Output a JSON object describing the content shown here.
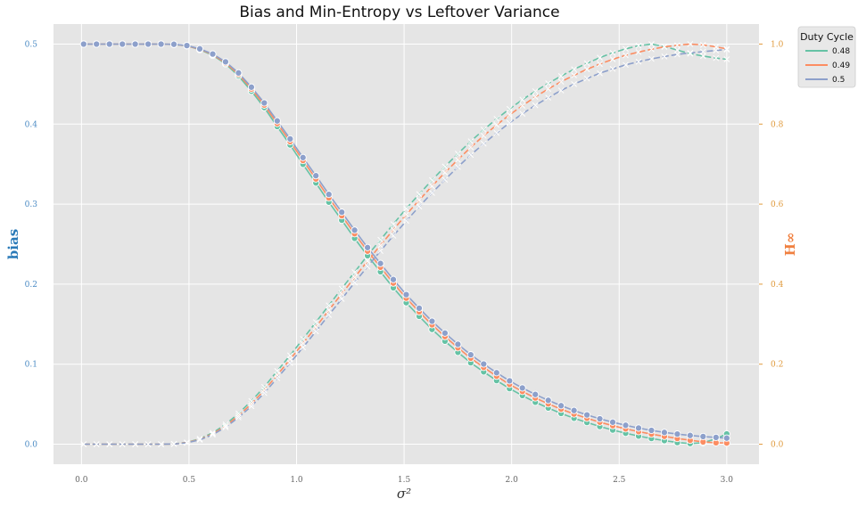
{
  "chart_data": {
    "type": "line",
    "title": "Bias and Min-Entropy vs Leftover Variance",
    "xlabel": "σ²",
    "ylabel_left": "bias",
    "ylabel_right": "H∞",
    "xlim": [
      -0.13,
      3.15
    ],
    "ylim_left": [
      -0.025,
      0.525
    ],
    "ylim_right": [
      -0.05,
      1.05
    ],
    "x_ticks": [
      "0.0",
      "0.5",
      "1.0",
      "1.5",
      "2.0",
      "2.5",
      "3.0"
    ],
    "y_left_ticks": [
      "0.0",
      "0.1",
      "0.2",
      "0.3",
      "0.4",
      "0.5"
    ],
    "y_right_ticks": [
      "0.0",
      "0.2",
      "0.4",
      "0.6",
      "0.8",
      "1.0"
    ],
    "grid": true,
    "legend": {
      "title": "Duty Cycle",
      "placement": "top-right",
      "entries": [
        "0.48",
        "0.49",
        "0.5"
      ]
    },
    "x": [
      0.01,
      0.07,
      0.13,
      0.19,
      0.25,
      0.31,
      0.37,
      0.43,
      0.49,
      0.55,
      0.61,
      0.67,
      0.73,
      0.79,
      0.85,
      0.91,
      0.97,
      1.03,
      1.09,
      1.15,
      1.21,
      1.27,
      1.33,
      1.39,
      1.45,
      1.51,
      1.57,
      1.63,
      1.69,
      1.75,
      1.81,
      1.87,
      1.93,
      1.99,
      2.05,
      2.11,
      2.17,
      2.23,
      2.29,
      2.35,
      2.41,
      2.47,
      2.53,
      2.59,
      2.65,
      2.71,
      2.77,
      2.83,
      2.89,
      2.95,
      3.0
    ],
    "series": [
      {
        "name": "0.48",
        "color": "#66c2a5",
        "bias": [
          0.5,
          0.5,
          0.5,
          0.5,
          0.5,
          0.5,
          0.5,
          0.4995,
          0.4978,
          0.493,
          0.486,
          0.4753,
          0.4602,
          0.4412,
          0.4207,
          0.397,
          0.374,
          0.3498,
          0.3265,
          0.3025,
          0.28,
          0.2572,
          0.2355,
          0.2155,
          0.1955,
          0.1768,
          0.1598,
          0.1435,
          0.1288,
          0.1148,
          0.1018,
          0.0905,
          0.0795,
          0.0695,
          0.0608,
          0.0525,
          0.0452,
          0.0385,
          0.0325,
          0.0272,
          0.0222,
          0.0178,
          0.0138,
          0.0102,
          0.0072,
          0.0045,
          0.0022,
          0.0008,
          0.0018,
          0.0068,
          0.0128
        ],
        "hinf": [
          0.0,
          0.0,
          0.0,
          0.0,
          0.0,
          0.0,
          0.0,
          0.0008,
          0.0045,
          0.0135,
          0.0285,
          0.0495,
          0.077,
          0.108,
          0.143,
          0.183,
          0.222,
          0.263,
          0.305,
          0.347,
          0.389,
          0.43,
          0.472,
          0.511,
          0.55,
          0.589,
          0.625,
          0.66,
          0.694,
          0.726,
          0.757,
          0.786,
          0.813,
          0.838,
          0.861,
          0.882,
          0.902,
          0.92,
          0.937,
          0.952,
          0.966,
          0.978,
          0.988,
          0.996,
          1.0,
          0.994,
          0.985,
          0.976,
          0.97,
          0.965,
          0.962
        ]
      },
      {
        "name": "0.49",
        "color": "#fc8d62",
        "bias": [
          0.5,
          0.5,
          0.5,
          0.5,
          0.5,
          0.5,
          0.5,
          0.4996,
          0.498,
          0.4935,
          0.4868,
          0.4765,
          0.4622,
          0.4438,
          0.4238,
          0.4008,
          0.3782,
          0.3545,
          0.3315,
          0.3078,
          0.2855,
          0.263,
          0.2413,
          0.2212,
          0.2013,
          0.1825,
          0.1655,
          0.1492,
          0.1345,
          0.1205,
          0.1075,
          0.096,
          0.085,
          0.0748,
          0.066,
          0.0578,
          0.0505,
          0.0438,
          0.0378,
          0.0325,
          0.0276,
          0.0232,
          0.0192,
          0.0157,
          0.0126,
          0.0098,
          0.0072,
          0.005,
          0.003,
          0.0018,
          0.0015
        ],
        "hinf": [
          0.0,
          0.0,
          0.0,
          0.0,
          0.0,
          0.0,
          0.0,
          0.0006,
          0.004,
          0.0122,
          0.026,
          0.0455,
          0.0715,
          0.101,
          0.135,
          0.173,
          0.212,
          0.252,
          0.293,
          0.335,
          0.376,
          0.417,
          0.458,
          0.497,
          0.536,
          0.574,
          0.61,
          0.645,
          0.679,
          0.711,
          0.742,
          0.771,
          0.798,
          0.823,
          0.846,
          0.868,
          0.888,
          0.906,
          0.922,
          0.937,
          0.95,
          0.962,
          0.972,
          0.98,
          0.987,
          0.993,
          0.997,
          1.0,
          0.998,
          0.993,
          0.988
        ]
      },
      {
        "name": "0.5",
        "color": "#8da0cb",
        "bias": [
          0.5,
          0.5,
          0.5,
          0.5,
          0.5,
          0.5,
          0.5,
          0.4997,
          0.4982,
          0.494,
          0.4876,
          0.4778,
          0.464,
          0.4462,
          0.4265,
          0.404,
          0.3815,
          0.3582,
          0.3355,
          0.3122,
          0.29,
          0.2675,
          0.2458,
          0.2258,
          0.2058,
          0.187,
          0.17,
          0.1537,
          0.1389,
          0.1249,
          0.1118,
          0.1003,
          0.0893,
          0.0792,
          0.0703,
          0.0622,
          0.0548,
          0.0481,
          0.0421,
          0.0367,
          0.0318,
          0.0275,
          0.0236,
          0.0202,
          0.0173,
          0.0148,
          0.0127,
          0.011,
          0.0096,
          0.0085,
          0.0076
        ],
        "hinf": [
          0.0,
          0.0,
          0.0,
          0.0,
          0.0,
          0.0,
          0.0,
          0.0005,
          0.0035,
          0.011,
          0.024,
          0.0425,
          0.067,
          0.095,
          0.128,
          0.165,
          0.203,
          0.242,
          0.282,
          0.323,
          0.363,
          0.404,
          0.444,
          0.483,
          0.521,
          0.558,
          0.594,
          0.628,
          0.661,
          0.693,
          0.723,
          0.751,
          0.778,
          0.803,
          0.826,
          0.847,
          0.866,
          0.884,
          0.9,
          0.914,
          0.927,
          0.938,
          0.948,
          0.956,
          0.963,
          0.969,
          0.974,
          0.978,
          0.981,
          0.984,
          0.986
        ]
      }
    ]
  }
}
